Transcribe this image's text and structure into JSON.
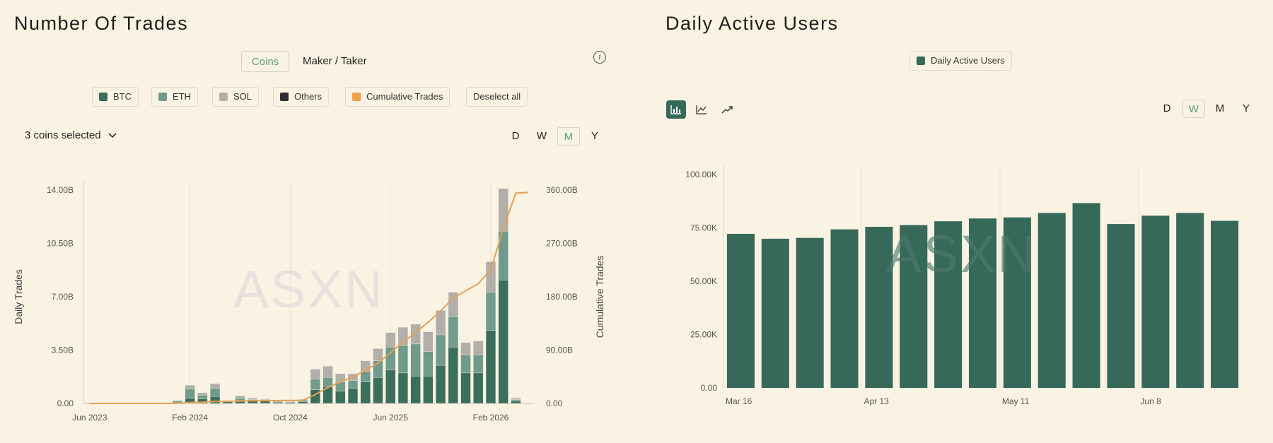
{
  "left": {
    "title": "Number Of Trades",
    "tabs": [
      {
        "label": "Coins",
        "active": true
      },
      {
        "label": "Maker / Taker",
        "active": false
      }
    ],
    "legend": [
      {
        "label": "BTC",
        "color": "#3b6e5d"
      },
      {
        "label": "ETH",
        "color": "#6f9a8c"
      },
      {
        "label": "SOL",
        "color": "#b2aea9"
      },
      {
        "label": "Others",
        "color": "#2d2d2d"
      },
      {
        "label": "Cumulative Trades",
        "color": "#f0a04b"
      }
    ],
    "deselect_label": "Deselect all",
    "coin_selector": "3 coins selected",
    "periods": [
      {
        "label": "D"
      },
      {
        "label": "W"
      },
      {
        "label": "M",
        "active": true
      },
      {
        "label": "Y"
      }
    ],
    "watermark": "ASXN"
  },
  "right": {
    "title": "Daily Active Users",
    "legend_label": "Daily Active Users",
    "legend_color": "#37695a",
    "chart_types": [
      "bar-chart-icon",
      "line-chart-icon",
      "trend-icon"
    ],
    "periods": [
      {
        "label": "D"
      },
      {
        "label": "W",
        "active": true
      },
      {
        "label": "M"
      },
      {
        "label": "Y"
      }
    ],
    "watermark": "ASXN"
  },
  "chart_data": [
    {
      "type": "bar",
      "stacked": true,
      "title": "Number Of Trades",
      "ylabel": "Daily Trades",
      "y2label": "Cumulative Trades",
      "ylim": [
        0,
        14.0
      ],
      "y2lim": [
        0,
        360.0
      ],
      "yticks": [
        "0.00",
        "3.50B",
        "7.00B",
        "10.50B",
        "14.00B"
      ],
      "y2ticks": [
        "0.00",
        "90.00B",
        "180.00B",
        "270.00B",
        "360.00B"
      ],
      "xtick_labels": [
        "Jun 2023",
        "Feb 2024",
        "Oct 2024",
        "Jun 2025",
        "Feb 2026"
      ],
      "xtick_index": [
        0,
        8,
        16,
        24,
        32
      ],
      "categories": [
        "2023-06",
        "2023-07",
        "2023-08",
        "2023-09",
        "2023-10",
        "2023-11",
        "2023-12",
        "2024-01",
        "2024-02",
        "2024-03",
        "2024-04",
        "2024-05",
        "2024-06",
        "2024-07",
        "2024-08",
        "2024-09",
        "2024-10",
        "2024-11",
        "2024-12",
        "2025-01",
        "2025-02",
        "2025-03",
        "2025-04",
        "2025-05",
        "2025-06",
        "2025-07",
        "2025-08",
        "2025-09",
        "2025-10",
        "2025-11",
        "2025-12",
        "2026-01",
        "2026-02",
        "2026-03",
        "2026-04",
        "2026-05"
      ],
      "series": [
        {
          "name": "BTC",
          "values": [
            0,
            0,
            0,
            0,
            0,
            0,
            0,
            0.05,
            0.35,
            0.3,
            0.45,
            0.1,
            0.2,
            0.15,
            0.15,
            0.08,
            0.06,
            0.12,
            0.9,
            1.1,
            0.8,
            1.0,
            1.4,
            1.7,
            2.2,
            2.0,
            1.8,
            1.8,
            2.5,
            3.7,
            2.0,
            2.0,
            4.8,
            8.1,
            0.15,
            0
          ]
        },
        {
          "name": "ETH",
          "values": [
            0,
            0,
            0,
            0,
            0,
            0,
            0,
            0.1,
            0.6,
            0.25,
            0.55,
            0.05,
            0.15,
            0.1,
            0.1,
            0.05,
            0.04,
            0.1,
            0.7,
            0.6,
            0.6,
            0.5,
            0.7,
            1.1,
            1.5,
            1.8,
            2.1,
            1.6,
            2.0,
            2.0,
            1.2,
            1.2,
            2.5,
            3.2,
            0.1,
            0
          ]
        },
        {
          "name": "SOL",
          "values": [
            0,
            0,
            0,
            0,
            0,
            0,
            0,
            0.05,
            0.25,
            0.15,
            0.3,
            0.05,
            0.15,
            0.1,
            0.05,
            0.05,
            0.04,
            0.05,
            0.65,
            0.75,
            0.55,
            0.45,
            0.7,
            0.8,
            0.95,
            1.2,
            1.3,
            1.3,
            1.6,
            1.6,
            0.8,
            0.9,
            2.0,
            2.8,
            0.1,
            0
          ]
        },
        {
          "name": "Others",
          "values": [
            0,
            0,
            0,
            0,
            0,
            0,
            0,
            0,
            0,
            0,
            0,
            0,
            0,
            0,
            0,
            0,
            0,
            0,
            0,
            0,
            0,
            0,
            0,
            0,
            0,
            0,
            0,
            0,
            0,
            0,
            0,
            0,
            0,
            0,
            0,
            0
          ]
        },
        {
          "name": "Cumulative Trades",
          "axis": "y2",
          "values": [
            0,
            0,
            0,
            0,
            0,
            0,
            0,
            0.2,
            1.4,
            2.1,
            3.4,
            3.6,
            4.1,
            4.4,
            4.7,
            4.9,
            5.0,
            5.3,
            15,
            27,
            36,
            45,
            56,
            68,
            86,
            103,
            120,
            137,
            156,
            178,
            190,
            202,
            226,
            295,
            355,
            356
          ]
        }
      ]
    },
    {
      "type": "bar",
      "title": "Daily Active Users",
      "ylim": [
        0,
        100000
      ],
      "yticks": [
        "0.00",
        "25.00K",
        "50.00K",
        "75.00K",
        "100.00K"
      ],
      "xtick_labels": [
        "Mar 16",
        "Apr 13",
        "May 11",
        "Jun 8"
      ],
      "xtick_index": [
        0,
        4,
        8,
        12
      ],
      "categories": [
        "Mar 16",
        "Mar 23",
        "Mar 30",
        "Apr 6",
        "Apr 13",
        "Apr 20",
        "Apr 27",
        "May 4",
        "May 11",
        "May 18",
        "May 25",
        "Jun 1",
        "Jun 8",
        "Jun 15",
        "Jun 22"
      ],
      "series": [
        {
          "name": "Daily Active Users",
          "values": [
            72200,
            69900,
            70300,
            74300,
            75500,
            76300,
            78100,
            79400,
            79900,
            82000,
            86600,
            76800,
            80700,
            82000,
            78300
          ]
        }
      ]
    }
  ]
}
